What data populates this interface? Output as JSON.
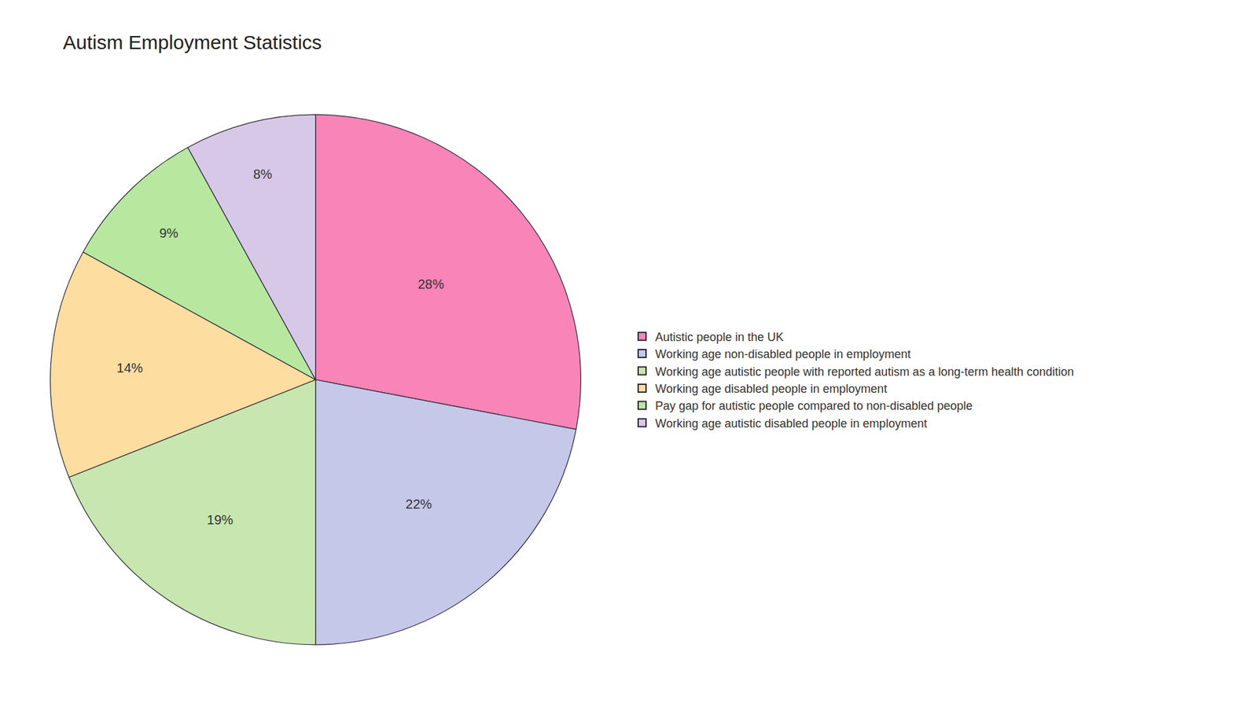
{
  "chart_data": {
    "type": "pie",
    "title": "Autism Employment Statistics",
    "categories": [
      "Autistic people in the UK",
      "Working age non-disabled people in employment",
      "Working age autistic people with reported autism as a long-term health condition",
      "Working age disabled people in employment",
      "Pay gap for autistic people compared to non-disabled people",
      "Working age autistic disabled people in employment"
    ],
    "values": [
      28,
      22,
      19,
      14,
      9,
      8
    ],
    "value_labels": [
      "28%",
      "22%",
      "19%",
      "14%",
      "9%",
      "8%"
    ],
    "colors": [
      "#F984B8",
      "#C5C8E8",
      "#C8E6B0",
      "#FDDDA0",
      "#B8E8A0",
      "#D8C8E8"
    ],
    "data_labels": true,
    "legend": "right"
  }
}
